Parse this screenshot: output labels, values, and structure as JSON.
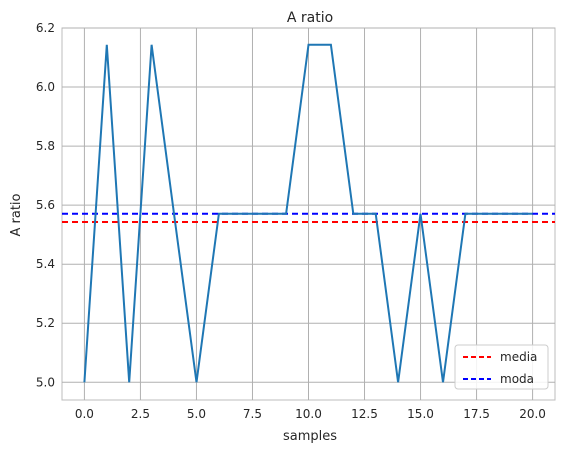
{
  "chart_data": {
    "type": "line",
    "title": "A ratio",
    "xlabel": "samples",
    "ylabel": "A ratio",
    "xlim": [
      -1.0,
      21.0
    ],
    "ylim": [
      4.94,
      6.2
    ],
    "x_ticks": [
      0.0,
      2.5,
      5.0,
      7.5,
      10.0,
      12.5,
      15.0,
      17.5,
      20.0
    ],
    "x_tick_labels": [
      "0.0",
      "2.5",
      "5.0",
      "7.5",
      "10.0",
      "12.5",
      "15.0",
      "17.5",
      "20.0"
    ],
    "y_ticks": [
      5.0,
      5.2,
      5.4,
      5.6,
      5.8,
      6.0,
      6.2
    ],
    "y_tick_labels": [
      "5.0",
      "5.2",
      "5.4",
      "5.6",
      "5.8",
      "6.0",
      "6.2"
    ],
    "grid": true,
    "legend_position": "lower-right",
    "series": [
      {
        "color": "#1f77b4",
        "x": [
          0,
          1,
          2,
          3,
          4,
          5,
          6,
          7,
          8,
          9,
          10,
          11,
          12,
          13,
          14,
          15,
          16,
          17,
          18,
          19,
          20
        ],
        "values": [
          5.0,
          6.143,
          5.0,
          6.143,
          5.571,
          5.0,
          5.571,
          5.571,
          5.571,
          5.571,
          6.143,
          6.143,
          5.571,
          5.571,
          5.0,
          5.571,
          5.0,
          5.571,
          5.571,
          5.571,
          5.571
        ]
      }
    ],
    "hlines": [
      {
        "name": "media",
        "value": 5.543,
        "color": "#ff0000",
        "style": "dashed"
      },
      {
        "name": "moda",
        "value": 5.571,
        "color": "#0000ff",
        "style": "dashed"
      }
    ]
  }
}
